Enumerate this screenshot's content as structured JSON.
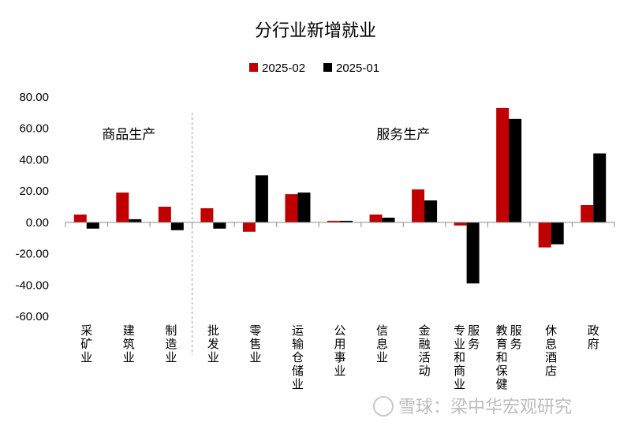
{
  "chart_data": {
    "type": "bar",
    "title": "分行业新增就业",
    "xlabel": "",
    "ylabel": "",
    "ylim": [
      -60,
      80
    ],
    "yticks": [
      "80.00",
      "60.00",
      "40.00",
      "20.00",
      "0.00",
      "-20.00",
      "-40.00",
      "-60.00"
    ],
    "tick_values": [
      80,
      60,
      40,
      20,
      0,
      -20,
      -40,
      -60
    ],
    "legend_position": "top-center",
    "grid": false,
    "categories": [
      "采矿业",
      "建筑业",
      "制造业",
      "批发业",
      "零售业",
      "运输仓储业",
      "公用事业",
      "信息业",
      "金融活动",
      "专业和商业服务",
      "教育和保健服务",
      "休息酒店",
      "政府"
    ],
    "series": [
      {
        "name": "2025-02",
        "color": "#c00000",
        "values": [
          5,
          19,
          10,
          9,
          -6,
          18,
          1,
          5,
          21,
          -2,
          73,
          -16,
          11
        ]
      },
      {
        "name": "2025-01",
        "color": "#000000",
        "values": [
          -4,
          2,
          -5,
          -4,
          30,
          19,
          1,
          3,
          14,
          -39,
          66,
          -14,
          44
        ]
      }
    ],
    "group_labels": [
      {
        "text": "商品生产",
        "span": [
          0,
          2
        ]
      },
      {
        "text": "服务生产",
        "span": [
          3,
          12
        ]
      }
    ],
    "divider_after_index": 2
  },
  "watermark": {
    "text": "雪球：梁中华宏观研究"
  }
}
